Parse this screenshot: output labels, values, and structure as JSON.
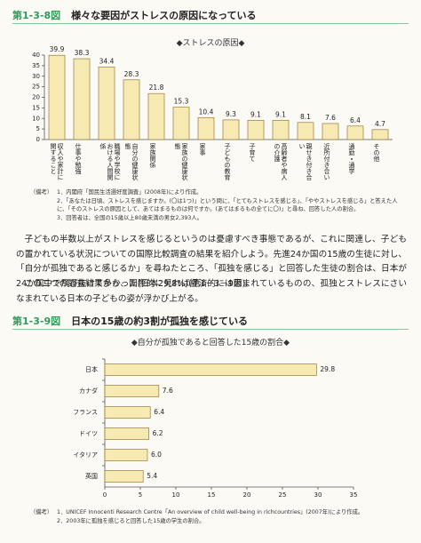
{
  "figures": [
    {
      "number": "第1-3-8図",
      "title": "様々な要因がストレスの原因になっている",
      "notes_label": "（備考）",
      "notes": [
        "1．内閣府「国民生活選好度調査」(2008年)により作成。",
        "2．「あなたは日頃、ストレスを感じますか。(〇は1つ)」という問に、「とてもストレスを感じる」、「ややストレスを感じる」と答えた人に、「そのストレスの原因として、あてはまるものは何ですか。(あてはまるもの全てに〇)」と尋ね、回答した人の割合。",
        "3．回答者は、全国の15歳以上80歳未満の男女2,393人。"
      ]
    },
    {
      "number": "第1-3-9図",
      "title": "日本の15歳の約3割が孤独を感じている",
      "notes_label": "（備考）",
      "notes": [
        "1．UNICEF Innocenti Research Centre「An overview of child well-being in richcountries」(2007年)により作成。",
        "2．2003年に孤独を感じると回答した15歳の学生の割合。"
      ]
    }
  ],
  "body": [
    "子どもの半数以上がストレスを感じるというのは憂慮すべき事態であるが、これに関連し、子どもの置かれている状況についての国際比較調査の結果を紹介しよう。先進24か国の15歳の生徒に対し、「自分が孤独であると感じるか」を尋ねたところ、「孤独を感じる」と回答した生徒の割合は、日本が24か国中で飛び抜けて多かった(日本29.8%)(第1－3－9図)。",
    "この二つの調査結果から、国際的に見れば経済的には恵まれているものの、孤独とストレスにさいなまれている日本の子どもの姿が浮かび上がる。"
  ],
  "chart_data": [
    {
      "type": "bar",
      "orientation": "vertical",
      "title": "◆ストレスの原因◆",
      "categories": [
        "収入や家計に関すること",
        "仕事や勉強",
        "職場や学校における人間関係",
        "自分の健康状態",
        "家族関係",
        "家族の健康状態",
        "家事",
        "子どもの教育",
        "子育て",
        "高齢者や病人の介護",
        "親せき付き合い",
        "近所付き合い",
        "通勤・通学",
        "その他"
      ],
      "values": [
        39.9,
        38.3,
        34.4,
        28.3,
        21.8,
        15.3,
        10.4,
        9.3,
        9.1,
        9.1,
        8.1,
        7.6,
        6.4,
        4.7
      ],
      "color": "#f6e9b2",
      "edge_color": "#9a7b3c",
      "ylim": [
        0,
        40
      ],
      "yticks": [
        0,
        5,
        10,
        15,
        20,
        25,
        30,
        35,
        40
      ]
    },
    {
      "type": "bar",
      "orientation": "horizontal",
      "title": "◆自分が孤独であると回答した15歳の割合◆",
      "categories": [
        "日本",
        "カナダ",
        "フランス",
        "ドイツ",
        "イタリア",
        "英国"
      ],
      "values": [
        29.8,
        7.6,
        6.4,
        6.2,
        6.0,
        5.4
      ],
      "value_labels": [
        "29.8",
        "7.6",
        "6.4",
        "6.2",
        "6.0",
        "5.4"
      ],
      "color": "#f6e9b2",
      "edge_color": "#9a7b3c",
      "xlim": [
        0,
        35
      ],
      "xticks": [
        0,
        5,
        10,
        15,
        20,
        25,
        30,
        35
      ]
    }
  ]
}
